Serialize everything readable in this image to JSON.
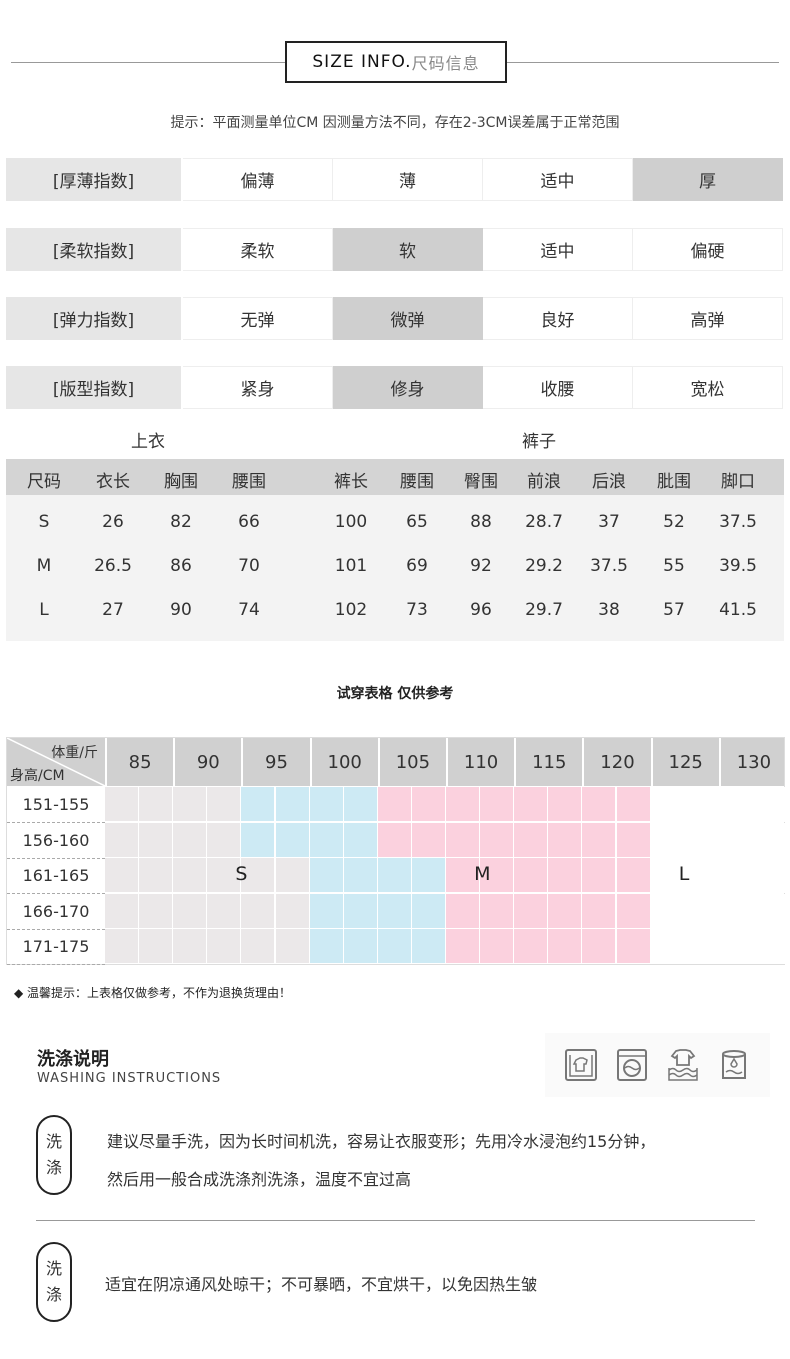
{
  "header": {
    "title_en": "SIZE INFO.",
    "title_cn": "尺码信息",
    "hint": "提示：平面测量单位CM 因测量方法不同，存在2-3CM误差属于正常范围"
  },
  "indices": [
    {
      "label": "[厚薄指数]",
      "options": [
        "偏薄",
        "薄",
        "适中",
        "厚"
      ],
      "selected": 3
    },
    {
      "label": "[柔软指数]",
      "options": [
        "柔软",
        "软",
        "适中",
        "偏硬"
      ],
      "selected": 1
    },
    {
      "label": "[弹力指数]",
      "options": [
        "无弹",
        "微弹",
        "良好",
        "高弹"
      ],
      "selected": 1
    },
    {
      "label": "[版型指数]",
      "options": [
        "紧身",
        "修身",
        "收腰",
        "宽松"
      ],
      "selected": 1
    }
  ],
  "size_table": {
    "group_top": "上衣",
    "group_pants": "裤子",
    "headers": [
      "尺码",
      "衣长",
      "胸围",
      "腰围",
      "裤长",
      "腰围",
      "臀围",
      "前浪",
      "后浪",
      "肶围",
      "脚口"
    ],
    "rows": [
      [
        "S",
        "26",
        "82",
        "66",
        "100",
        "65",
        "88",
        "28.7",
        "37",
        "52",
        "37.5"
      ],
      [
        "M",
        "26.5",
        "86",
        "70",
        "101",
        "69",
        "92",
        "29.2",
        "37.5",
        "55",
        "39.5"
      ],
      [
        "L",
        "27",
        "90",
        "74",
        "102",
        "73",
        "96",
        "29.7",
        "38",
        "57",
        "41.5"
      ]
    ]
  },
  "fit_chart": {
    "title": "试穿表格  仅供参考",
    "weight_label": "体重/斤",
    "height_label": "身高/CM",
    "weights": [
      "85",
      "90",
      "95",
      "100",
      "105",
      "110",
      "115",
      "120",
      "125",
      "130"
    ],
    "heights": [
      "151-155",
      "156-160",
      "161-165",
      "166-170",
      "171-175"
    ],
    "grid": [
      [
        "S",
        "S",
        "M",
        "M",
        "L",
        "L",
        "L",
        "L",
        "",
        ""
      ],
      [
        "S",
        "S",
        "M",
        "M",
        "L",
        "L",
        "L",
        "L",
        "",
        ""
      ],
      [
        "S",
        "S",
        "S",
        "M",
        "M",
        "L",
        "L",
        "L",
        "",
        ""
      ],
      [
        "S",
        "S",
        "S",
        "M",
        "M",
        "L",
        "L",
        "L",
        "",
        ""
      ],
      [
        "S",
        "S",
        "S",
        "M",
        "M",
        "L",
        "L",
        "L",
        "",
        ""
      ]
    ],
    "labels": {
      "S": "S",
      "M": "M",
      "L": "L"
    },
    "colors": {
      "S": "#ebe8e9",
      "M": "#cdeaf4",
      "L": "#fbd1de",
      "": "#ffffff"
    },
    "tip": "温馨提示：上表格仅做参考，不作为退换货理由！"
  },
  "washing": {
    "title": "洗涤说明",
    "subtitle": "WASHING INSTRUCTIONS",
    "icons": [
      "hand-wash-icon",
      "machine-wash-icon",
      "soak-icon",
      "detergent-icon"
    ],
    "items": [
      {
        "badge": [
          "洗",
          "涤"
        ],
        "lines": [
          "建议尽量手洗，因为长时间机洗，容易让衣服变形；先用冷水浸泡约15分钟，",
          "然后用一般合成洗涤剂洗涤，温度不宜过高"
        ]
      },
      {
        "badge": [
          "洗",
          "涤"
        ],
        "lines": [
          "适宜在阴凉通风处晾干；不可暴晒，不宜烘干，以免因热生皱"
        ]
      }
    ]
  }
}
